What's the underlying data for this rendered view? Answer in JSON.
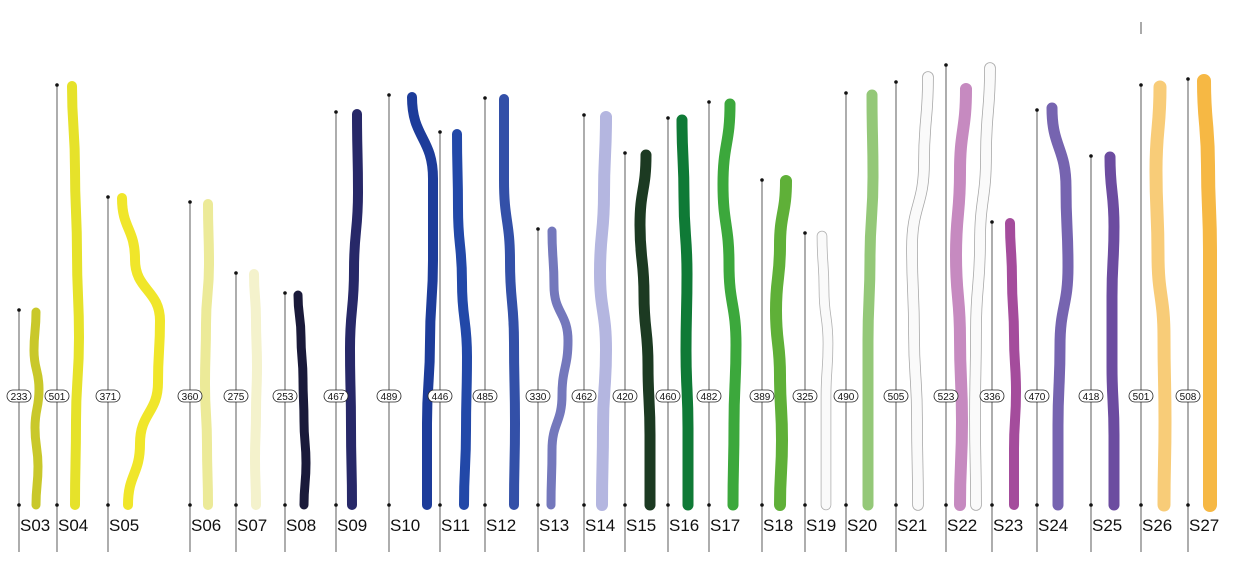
{
  "figure": {
    "sticks": [
      {
        "id": "S03",
        "length": "233",
        "color": "#c9c82a",
        "outline": null
      },
      {
        "id": "S04",
        "length": "501",
        "color": "#e6e22a",
        "outline": null
      },
      {
        "id": "S05",
        "length": "371",
        "color": "#f0e62a",
        "outline": null
      },
      {
        "id": "S06",
        "length": "360",
        "color": "#ecea98",
        "outline": null
      },
      {
        "id": "S07",
        "length": "275",
        "color": "#f4f2cc",
        "outline": null
      },
      {
        "id": "S08",
        "length": "253",
        "color": "#1a1a3a",
        "outline": null
      },
      {
        "id": "S09",
        "length": "467",
        "color": "#272868",
        "outline": null
      },
      {
        "id": "S10",
        "length": "489",
        "color": "#1d3c9a",
        "outline": null
      },
      {
        "id": "S11",
        "length": "446",
        "color": "#2248a8",
        "outline": null
      },
      {
        "id": "S12",
        "length": "485",
        "color": "#3350a8",
        "outline": null
      },
      {
        "id": "S13",
        "length": "330",
        "color": "#7478bc",
        "outline": null
      },
      {
        "id": "S14",
        "length": "462",
        "color": "#b4b6e0",
        "outline": null
      },
      {
        "id": "S15",
        "length": "420",
        "color": "#1c3a22",
        "outline": null
      },
      {
        "id": "S16",
        "length": "460",
        "color": "#0f7a36",
        "outline": null
      },
      {
        "id": "S17",
        "length": "482",
        "color": "#3ca83c",
        "outline": null
      },
      {
        "id": "S18",
        "length": "389",
        "color": "#5fb038",
        "outline": null
      },
      {
        "id": "S19",
        "length": "325",
        "color": "#fafafa",
        "outline": "#b0b0b0"
      },
      {
        "id": "S20",
        "length": "490",
        "color": "#94c878",
        "outline": null
      },
      {
        "id": "S21",
        "length": "505",
        "color": "#fafafa",
        "outline": "#a8a8a8"
      },
      {
        "id": "S22",
        "length": "523",
        "color": "#c68ac0",
        "outline": null
      },
      {
        "id": "S22b",
        "length": "336",
        "color": "#fafafa",
        "outline": "#a8a8a8"
      },
      {
        "id": "S23",
        "length": "",
        "color": "#a44c9c",
        "outline": null
      },
      {
        "id": "S24",
        "length": "470",
        "color": "#7664b0",
        "outline": null
      },
      {
        "id": "S25",
        "length": "418",
        "color": "#6c4ca0",
        "outline": null
      },
      {
        "id": "S26",
        "length": "501",
        "color": "#f8cc78",
        "outline": null
      },
      {
        "id": "S27",
        "length": "508",
        "color": "#f6b844",
        "outline": null
      }
    ],
    "labels": [
      "S03",
      "S04",
      "S05",
      "S06",
      "S07",
      "S08",
      "S09",
      "S10",
      "S11",
      "S12",
      "S13",
      "S14",
      "S15",
      "S16",
      "S17",
      "S18",
      "S19",
      "S20",
      "S21",
      "S22",
      "S23",
      "S24",
      "S25",
      "S26",
      "S27"
    ]
  }
}
